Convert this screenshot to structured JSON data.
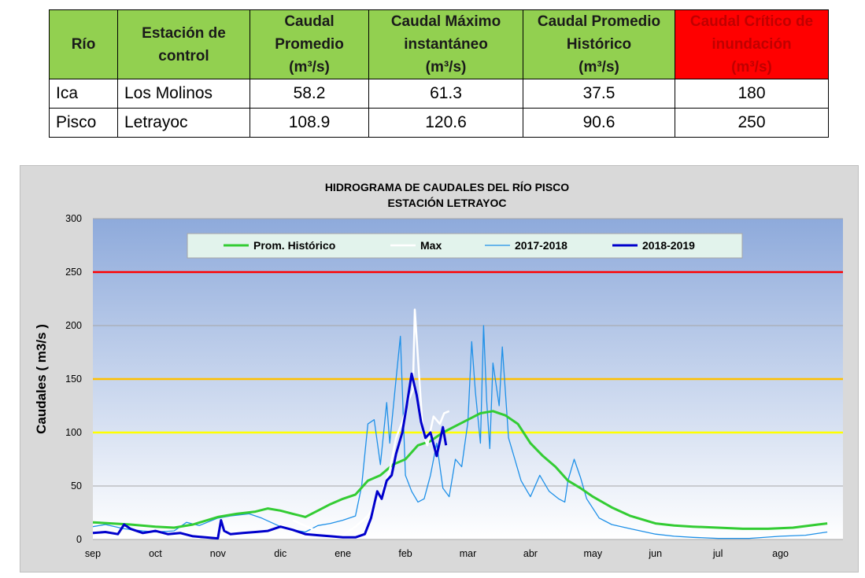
{
  "table": {
    "headers": [
      {
        "text": "Río",
        "style": "green"
      },
      {
        "text": "Estación de\ncontrol",
        "style": "green"
      },
      {
        "text": "Caudal\nPromedio\n(m³/s)",
        "style": "green"
      },
      {
        "text": "Caudal Máximo\ninstantáneo\n(m³/s)",
        "style": "green"
      },
      {
        "text": "Caudal Promedio\nHistórico\n(m³/s)",
        "style": "green"
      },
      {
        "text": "Caudal Crítico de\ninundación\n(m³/s)",
        "style": "red"
      }
    ],
    "rows": [
      [
        "Ica",
        "Los Molinos",
        "58.2",
        "61.3",
        "37.5",
        "180"
      ],
      [
        "Pisco",
        "Letrayoc",
        "108.9",
        "120.6",
        "90.6",
        "250"
      ]
    ]
  },
  "chart_data": {
    "type": "line",
    "title": "HIDROGRAMA DE CAUDALES DEL RÍO PISCO",
    "subtitle": "ESTACIÓN LETRAYOC",
    "ylabel": "Caudales ( m3/s )",
    "xlabel": "",
    "ylim": [
      0,
      300
    ],
    "yticks": [
      0,
      50,
      100,
      150,
      200,
      250,
      300
    ],
    "months": [
      "sep",
      "oct",
      "nov",
      "dic",
      "ene",
      "feb",
      "mar",
      "abr",
      "may",
      "jun",
      "jul",
      "ago"
    ],
    "grid": true,
    "legend_position": "top",
    "thresholds": [
      {
        "value": 250,
        "color": "#ff0000"
      },
      {
        "value": 150,
        "color": "#ffc000"
      },
      {
        "value": 100,
        "color": "#ffff00"
      }
    ],
    "colors": {
      "plot_top": "#8eaadb",
      "plot_bottom": "#ffffff",
      "legend_bg": "#e2f3ec"
    },
    "series": [
      {
        "name": "Prom. Histórico",
        "color": "#33cc33",
        "width": 3,
        "points": [
          [
            0,
            16
          ],
          [
            0.3,
            15
          ],
          [
            0.6,
            14
          ],
          [
            1,
            12
          ],
          [
            1.3,
            11
          ],
          [
            1.6,
            14
          ],
          [
            2,
            21
          ],
          [
            2.3,
            24
          ],
          [
            2.6,
            26
          ],
          [
            2.8,
            29
          ],
          [
            3,
            27
          ],
          [
            3.2,
            24
          ],
          [
            3.4,
            21
          ],
          [
            3.6,
            27
          ],
          [
            3.8,
            33
          ],
          [
            4,
            38
          ],
          [
            4.2,
            42
          ],
          [
            4.4,
            55
          ],
          [
            4.6,
            60
          ],
          [
            4.8,
            70
          ],
          [
            5,
            75
          ],
          [
            5.2,
            88
          ],
          [
            5.4,
            92
          ],
          [
            5.6,
            100
          ],
          [
            5.8,
            106
          ],
          [
            6,
            112
          ],
          [
            6.2,
            118
          ],
          [
            6.4,
            120
          ],
          [
            6.6,
            116
          ],
          [
            6.8,
            108
          ],
          [
            7,
            90
          ],
          [
            7.2,
            78
          ],
          [
            7.4,
            68
          ],
          [
            7.6,
            55
          ],
          [
            7.8,
            48
          ],
          [
            8,
            40
          ],
          [
            8.3,
            30
          ],
          [
            8.6,
            22
          ],
          [
            9,
            15
          ],
          [
            9.3,
            13
          ],
          [
            9.6,
            12
          ],
          [
            10,
            11
          ],
          [
            10.4,
            10
          ],
          [
            10.8,
            10
          ],
          [
            11.2,
            11
          ],
          [
            11.6,
            14
          ],
          [
            11.75,
            15
          ]
        ]
      },
      {
        "name": "Max",
        "color": "#ffffff",
        "width": 2.5,
        "points": [
          [
            3.2,
            18
          ],
          [
            3.5,
            10
          ],
          [
            3.8,
            5
          ],
          [
            4,
            4
          ],
          [
            4.2,
            12
          ],
          [
            4.4,
            22
          ],
          [
            4.6,
            40
          ],
          [
            4.75,
            65
          ],
          [
            4.85,
            95
          ],
          [
            4.95,
            110
          ],
          [
            5.05,
            130
          ],
          [
            5.12,
            140
          ],
          [
            5.15,
            215
          ],
          [
            5.2,
            170
          ],
          [
            5.28,
            100
          ],
          [
            5.35,
            88
          ],
          [
            5.45,
            115
          ],
          [
            5.55,
            108
          ],
          [
            5.62,
            118
          ],
          [
            5.7,
            120
          ]
        ]
      },
      {
        "name": "2017-2018",
        "color": "#1e90e8",
        "width": 1.3,
        "points": [
          [
            0,
            12
          ],
          [
            0.2,
            14
          ],
          [
            0.5,
            10
          ],
          [
            0.8,
            8
          ],
          [
            1,
            7
          ],
          [
            1.3,
            8
          ],
          [
            1.5,
            16
          ],
          [
            1.7,
            13
          ],
          [
            2,
            20
          ],
          [
            2.2,
            22
          ],
          [
            2.5,
            24
          ],
          [
            2.7,
            20
          ],
          [
            3,
            12
          ],
          [
            3.2,
            9
          ],
          [
            3.4,
            7
          ],
          [
            3.6,
            13
          ],
          [
            3.8,
            15
          ],
          [
            4,
            18
          ],
          [
            4.2,
            22
          ],
          [
            4.3,
            50
          ],
          [
            4.4,
            108
          ],
          [
            4.5,
            112
          ],
          [
            4.6,
            70
          ],
          [
            4.7,
            128
          ],
          [
            4.75,
            90
          ],
          [
            4.85,
            150
          ],
          [
            4.92,
            190
          ],
          [
            5,
            60
          ],
          [
            5.1,
            45
          ],
          [
            5.2,
            35
          ],
          [
            5.3,
            38
          ],
          [
            5.4,
            60
          ],
          [
            5.5,
            90
          ],
          [
            5.6,
            48
          ],
          [
            5.7,
            40
          ],
          [
            5.8,
            75
          ],
          [
            5.9,
            68
          ],
          [
            6,
            110
          ],
          [
            6.06,
            185
          ],
          [
            6.12,
            138
          ],
          [
            6.2,
            90
          ],
          [
            6.25,
            200
          ],
          [
            6.3,
            130
          ],
          [
            6.35,
            85
          ],
          [
            6.4,
            165
          ],
          [
            6.5,
            125
          ],
          [
            6.55,
            180
          ],
          [
            6.65,
            95
          ],
          [
            6.75,
            75
          ],
          [
            6.85,
            55
          ],
          [
            6.95,
            45
          ],
          [
            7,
            40
          ],
          [
            7.15,
            60
          ],
          [
            7.3,
            45
          ],
          [
            7.45,
            38
          ],
          [
            7.55,
            35
          ],
          [
            7.6,
            55
          ],
          [
            7.7,
            75
          ],
          [
            7.8,
            58
          ],
          [
            7.9,
            38
          ],
          [
            8.1,
            20
          ],
          [
            8.3,
            14
          ],
          [
            8.6,
            10
          ],
          [
            9,
            5
          ],
          [
            9.3,
            3
          ],
          [
            9.6,
            2
          ],
          [
            10,
            1
          ],
          [
            10.5,
            1
          ],
          [
            11,
            3
          ],
          [
            11.4,
            4
          ],
          [
            11.75,
            7
          ]
        ]
      },
      {
        "name": "2018-2019",
        "color": "#0000cc",
        "width": 3,
        "points": [
          [
            0,
            6
          ],
          [
            0.2,
            7
          ],
          [
            0.4,
            5
          ],
          [
            0.5,
            14
          ],
          [
            0.6,
            10
          ],
          [
            0.8,
            6
          ],
          [
            1,
            8
          ],
          [
            1.2,
            5
          ],
          [
            1.4,
            6
          ],
          [
            1.6,
            3
          ],
          [
            1.8,
            2
          ],
          [
            2,
            1
          ],
          [
            2.05,
            18
          ],
          [
            2.1,
            8
          ],
          [
            2.2,
            5
          ],
          [
            2.4,
            6
          ],
          [
            2.6,
            7
          ],
          [
            2.8,
            8
          ],
          [
            3,
            12
          ],
          [
            3.2,
            9
          ],
          [
            3.4,
            5
          ],
          [
            3.6,
            4
          ],
          [
            3.8,
            3
          ],
          [
            4,
            2
          ],
          [
            4.2,
            2
          ],
          [
            4.35,
            5
          ],
          [
            4.45,
            20
          ],
          [
            4.55,
            45
          ],
          [
            4.62,
            38
          ],
          [
            4.7,
            55
          ],
          [
            4.78,
            60
          ],
          [
            4.85,
            80
          ],
          [
            4.95,
            100
          ],
          [
            5.02,
            125
          ],
          [
            5.1,
            155
          ],
          [
            5.18,
            135
          ],
          [
            5.25,
            110
          ],
          [
            5.32,
            95
          ],
          [
            5.4,
            100
          ],
          [
            5.5,
            78
          ],
          [
            5.6,
            105
          ],
          [
            5.65,
            88
          ]
        ]
      }
    ]
  }
}
